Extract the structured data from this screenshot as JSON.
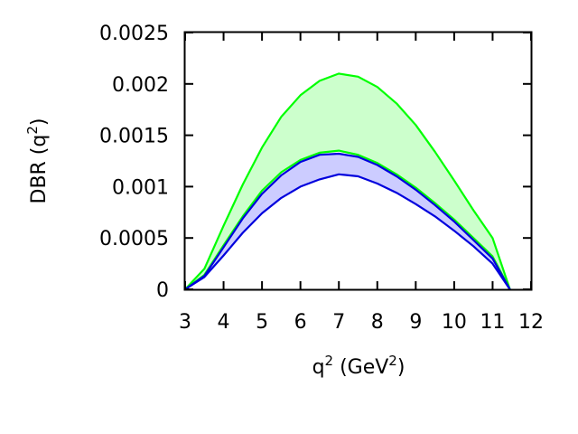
{
  "chart_data": {
    "type": "area",
    "xlabel": "q",
    "xlabel_sup": "2",
    "xlabel_unit_prefix": "(GeV",
    "xlabel_unit_sup": "2",
    "xlabel_unit_suffix": ")",
    "ylabel": "DBR (q",
    "ylabel_sup": "2",
    "ylabel_suffix": ")",
    "xlim": [
      3,
      12
    ],
    "ylim": [
      0,
      0.0025
    ],
    "xticks": [
      "3",
      "4",
      "5",
      "6",
      "7",
      "8",
      "9",
      "10",
      "11",
      "12"
    ],
    "yticks": [
      "0",
      "0.0005",
      "0.001",
      "0.0015",
      "0.002",
      "0.0025"
    ],
    "grid": false,
    "bands": [
      {
        "color": "#00ff00",
        "fill": "#ccffcc",
        "x": [
          3.0,
          3.5,
          4.0,
          4.5,
          5.0,
          5.5,
          6.0,
          6.5,
          7.0,
          7.5,
          8.0,
          8.5,
          9.0,
          9.5,
          10.0,
          10.5,
          11.0,
          11.45
        ],
        "upper": [
          0.0,
          0.0002,
          0.00062,
          0.00102,
          0.00138,
          0.00168,
          0.00189,
          0.00203,
          0.0021,
          0.00207,
          0.00197,
          0.00181,
          0.0016,
          0.00134,
          0.00106,
          0.00077,
          0.0005,
          0.0
        ],
        "lower": [
          0.0,
          0.00014,
          0.00043,
          0.00071,
          0.00096,
          0.00114,
          0.00126,
          0.00133,
          0.00135,
          0.00131,
          0.00123,
          0.00112,
          0.00099,
          0.00084,
          0.00068,
          0.0005,
          0.00032,
          0.0
        ]
      },
      {
        "color": "#0000dd",
        "fill": "#ccccff",
        "x": [
          3.0,
          3.5,
          4.0,
          4.5,
          5.0,
          5.5,
          6.0,
          6.5,
          7.0,
          7.5,
          8.0,
          8.5,
          9.0,
          9.5,
          10.0,
          10.5,
          11.0,
          11.45
        ],
        "upper": [
          0.0,
          0.00013,
          0.00041,
          0.00069,
          0.00093,
          0.00111,
          0.00124,
          0.00131,
          0.00132,
          0.00129,
          0.00121,
          0.0011,
          0.00097,
          0.00082,
          0.00066,
          0.00048,
          0.0003,
          0.0
        ],
        "lower": [
          0.0,
          0.00012,
          0.00033,
          0.00055,
          0.00074,
          0.00089,
          0.001,
          0.00107,
          0.00112,
          0.0011,
          0.00103,
          0.00094,
          0.00083,
          0.00071,
          0.00057,
          0.00042,
          0.00025,
          0.0
        ]
      }
    ]
  }
}
